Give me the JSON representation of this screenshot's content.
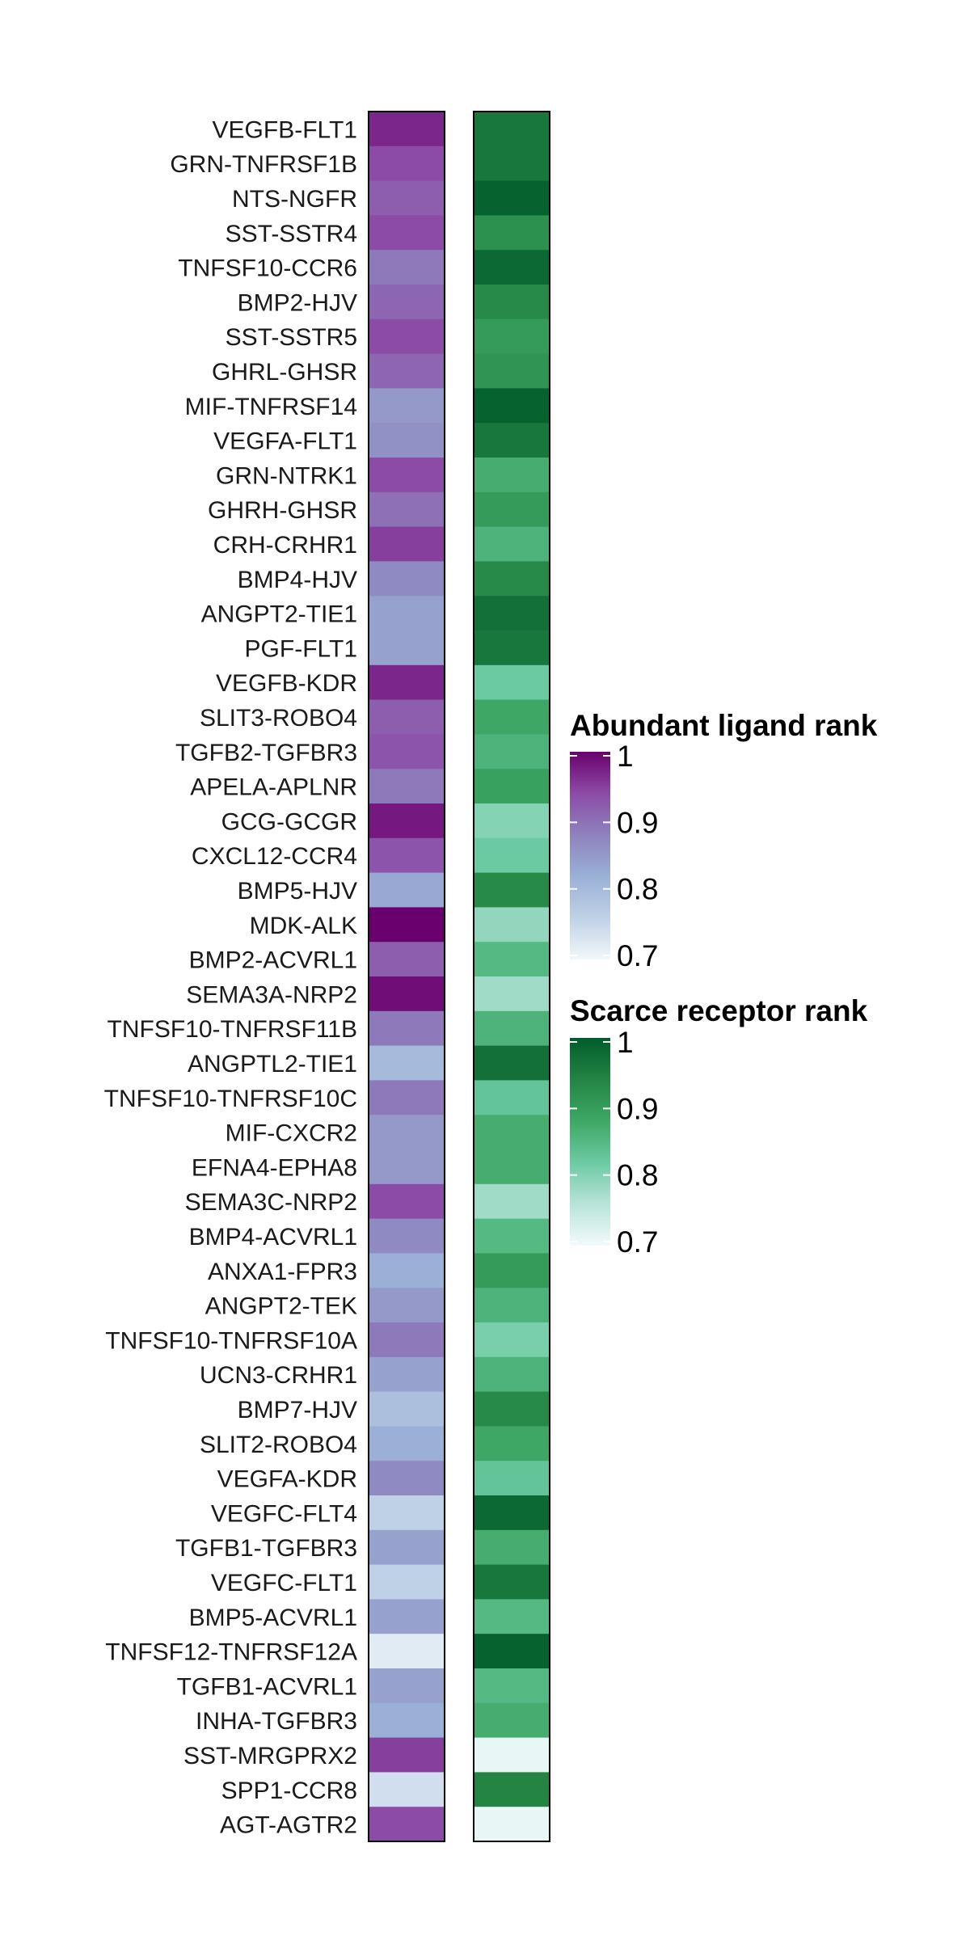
{
  "chart_data": {
    "type": "heatmap",
    "rows": [
      "VEGFB-FLT1",
      "GRN-TNFRSF1B",
      "NTS-NGFR",
      "SST-SSTR4",
      "TNFSF10-CCR6",
      "BMP2-HJV",
      "SST-SSTR5",
      "GHRL-GHSR",
      "MIF-TNFRSF14",
      "VEGFA-FLT1",
      "GRN-NTRK1",
      "GHRH-GHSR",
      "CRH-CRHR1",
      "BMP4-HJV",
      "ANGPT2-TIE1",
      "PGF-FLT1",
      "VEGFB-KDR",
      "SLIT3-ROBO4",
      "TGFB2-TGFBR3",
      "APELA-APLNR",
      "GCG-GCGR",
      "CXCL12-CCR4",
      "BMP5-HJV",
      "MDK-ALK",
      "BMP2-ACVRL1",
      "SEMA3A-NRP2",
      "TNFSF10-TNFRSF11B",
      "ANGPTL2-TIE1",
      "TNFSF10-TNFRSF10C",
      "MIF-CXCR2",
      "EFNA4-EPHA8",
      "SEMA3C-NRP2",
      "BMP4-ACVRL1",
      "ANXA1-FPR3",
      "ANGPT2-TEK",
      "TNFSF10-TNFRSF10A",
      "UCN3-CRHR1",
      "BMP7-HJV",
      "SLIT2-ROBO4",
      "VEGFA-KDR",
      "VEGFC-FLT4",
      "TGFB1-TGFBR3",
      "VEGFC-FLT1",
      "BMP5-ACVRL1",
      "TNFSF12-TNFRSF12A",
      "TGFB1-ACVRL1",
      "INHA-TGFBR3",
      "SST-MRGPRX2",
      "SPP1-CCR8",
      "AGT-AGTR2"
    ],
    "series": [
      {
        "name": "Abundant ligand rank",
        "values": [
          0.97,
          0.94,
          0.92,
          0.94,
          0.89,
          0.91,
          0.94,
          0.91,
          0.85,
          0.86,
          0.94,
          0.9,
          0.95,
          0.87,
          0.84,
          0.84,
          0.97,
          0.92,
          0.93,
          0.89,
          0.98,
          0.93,
          0.83,
          1.0,
          0.92,
          0.99,
          0.89,
          0.8,
          0.89,
          0.85,
          0.85,
          0.94,
          0.87,
          0.82,
          0.85,
          0.89,
          0.84,
          0.79,
          0.82,
          0.87,
          0.76,
          0.84,
          0.76,
          0.84,
          0.72,
          0.84,
          0.82,
          0.95,
          0.74,
          0.94
        ]
      },
      {
        "name": "Scarce receptor rank",
        "values": [
          0.96,
          0.96,
          0.99,
          0.92,
          0.98,
          0.93,
          0.9,
          0.91,
          0.99,
          0.96,
          0.87,
          0.9,
          0.86,
          0.93,
          0.97,
          0.96,
          0.82,
          0.88,
          0.86,
          0.89,
          0.8,
          0.82,
          0.93,
          0.79,
          0.85,
          0.78,
          0.86,
          0.97,
          0.83,
          0.87,
          0.87,
          0.78,
          0.85,
          0.9,
          0.86,
          0.81,
          0.86,
          0.93,
          0.88,
          0.83,
          0.98,
          0.87,
          0.96,
          0.85,
          0.99,
          0.85,
          0.87,
          0.71,
          0.94,
          0.71
        ]
      }
    ],
    "legends": [
      {
        "title": "Abundant ligand rank",
        "ticks": [
          "1",
          "0.9",
          "0.8",
          "0.7"
        ],
        "range": [
          0.7,
          1.0
        ],
        "stops": [
          "#f1f8fb",
          "#bfd1e6",
          "#9ab0d6",
          "#8e82be",
          "#8c4ba6",
          "#6a006d"
        ]
      },
      {
        "title": "Scarce receptor rank",
        "ticks": [
          "1",
          "0.9",
          "0.8",
          "0.7"
        ],
        "range": [
          0.7,
          1.0
        ],
        "stops": [
          "#f2fafb",
          "#b8e4d8",
          "#6ccaa3",
          "#3ea765",
          "#238444",
          "#005c2b"
        ]
      }
    ],
    "legend_position": "right",
    "grid": false
  }
}
